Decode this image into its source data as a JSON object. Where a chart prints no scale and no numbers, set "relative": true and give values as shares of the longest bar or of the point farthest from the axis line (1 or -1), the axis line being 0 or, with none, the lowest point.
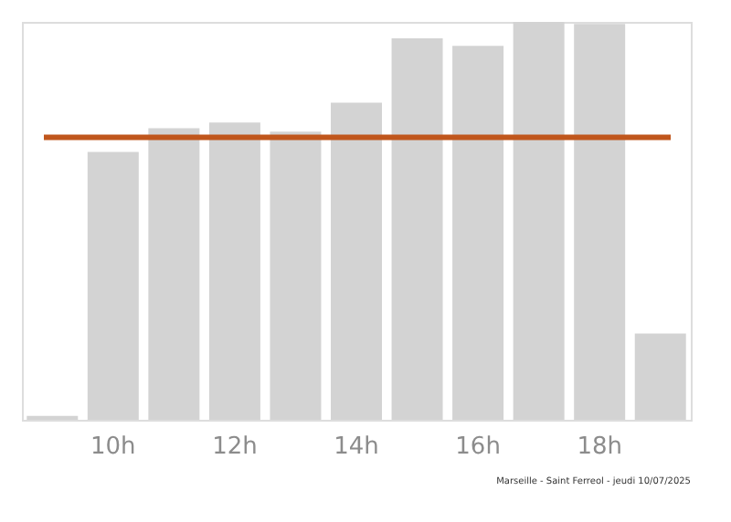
{
  "chart_data": {
    "type": "bar",
    "relative": true,
    "categories": [
      null,
      "10h",
      null,
      "12h",
      null,
      "14h",
      null,
      "16h",
      null,
      "18h",
      null
    ],
    "values": [
      0.01,
      0.673,
      0.733,
      0.747,
      0.724,
      0.797,
      0.959,
      0.94,
      1,
      0.995,
      0.217
    ],
    "color": "#d3d3d3",
    "ref_lines": [
      {
        "axis": "y",
        "value": 0.71,
        "color": "#c0561c"
      }
    ],
    "annotations": [
      "Marseille - Saint Ferreol - jeudi 10/07/2025"
    ],
    "grid": false
  }
}
